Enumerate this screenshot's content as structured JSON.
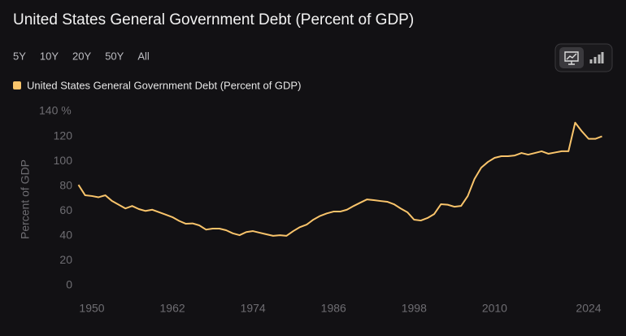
{
  "chart_data": {
    "type": "line",
    "title": "United States General Government Debt (Percent of GDP)",
    "ranges": [
      "5Y",
      "10Y",
      "20Y",
      "50Y",
      "All"
    ],
    "y_label": "Percent of GDP",
    "x": [
      1948,
      1949,
      1950,
      1951,
      1952,
      1953,
      1954,
      1955,
      1956,
      1957,
      1958,
      1959,
      1960,
      1961,
      1962,
      1963,
      1964,
      1965,
      1966,
      1967,
      1968,
      1969,
      1970,
      1971,
      1972,
      1973,
      1974,
      1975,
      1976,
      1977,
      1978,
      1979,
      1980,
      1981,
      1982,
      1983,
      1984,
      1985,
      1986,
      1987,
      1988,
      1989,
      1990,
      1991,
      1992,
      1993,
      1994,
      1995,
      1996,
      1997,
      1998,
      1999,
      2000,
      2001,
      2002,
      2003,
      2004,
      2005,
      2006,
      2007,
      2008,
      2009,
      2010,
      2011,
      2012,
      2013,
      2014,
      2015,
      2016,
      2017,
      2018,
      2019,
      2020,
      2021,
      2022,
      2023,
      2024,
      2025,
      2026
    ],
    "series": [
      {
        "name": "United States General Government Debt (Percent of GDP)",
        "color": "#f9c46b",
        "values": [
          81,
          72.6,
          72,
          71,
          72.6,
          68,
          65,
          62,
          64,
          61.5,
          60,
          61,
          59,
          57,
          55,
          52,
          49.7,
          50,
          48.4,
          45,
          45.8,
          45.8,
          44.5,
          42,
          40.5,
          43,
          43.8,
          42.5,
          41.2,
          40,
          40.5,
          40,
          43.8,
          47,
          49,
          53,
          56,
          58,
          59.5,
          59.5,
          61,
          64,
          66.7,
          69.3,
          68.7,
          68,
          67.4,
          65.4,
          62,
          59,
          53,
          52.3,
          54.3,
          57.5,
          65.4,
          65,
          63.4,
          64,
          72,
          85.7,
          94.8,
          99.4,
          102.7,
          104,
          104,
          104.6,
          106.6,
          105.3,
          106.6,
          108,
          106,
          107,
          108,
          108,
          131,
          124,
          118,
          118,
          120
        ]
      }
    ],
    "xlim": [
      1948,
      2026
    ],
    "xticks": [
      1950,
      1962,
      1974,
      1986,
      1998,
      2010,
      2024
    ],
    "ylim": [
      0,
      140
    ],
    "yticks": [
      0,
      20,
      40,
      60,
      80,
      100,
      120,
      {
        "value": 140,
        "label": "140 %"
      }
    ],
    "grid": false
  }
}
